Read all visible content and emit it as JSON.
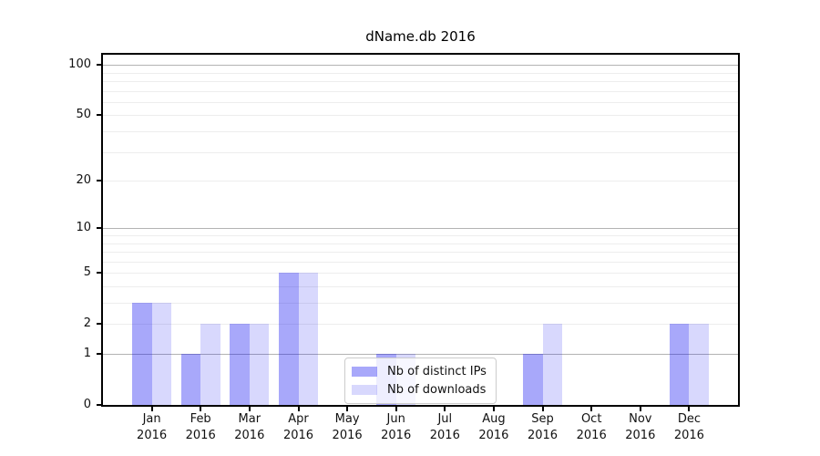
{
  "chart_data": {
    "type": "bar",
    "title": "dName.db 2016",
    "x_year": "2016",
    "categories": [
      "Jan",
      "Feb",
      "Mar",
      "Apr",
      "May",
      "Jun",
      "Jul",
      "Aug",
      "Sep",
      "Oct",
      "Nov",
      "Dec"
    ],
    "series": [
      {
        "name": "Nb of distinct IPs",
        "key": "distinct-ips",
        "color": "#0000f057",
        "values": [
          3,
          1,
          2,
          5,
          0,
          1,
          0,
          0,
          1,
          0,
          0,
          2
        ]
      },
      {
        "name": "Nb of downloads",
        "key": "downloads",
        "color": "#0000f027",
        "values": [
          3,
          2,
          2,
          5,
          0,
          1,
          0,
          0,
          2,
          0,
          0,
          2
        ]
      }
    ],
    "y_ticks": [
      0,
      1,
      2,
      5,
      10,
      20,
      50,
      100
    ],
    "y_scale": "log10(value+1)",
    "ylim": [
      0,
      115
    ],
    "grid": true,
    "legend_position": "lower center",
    "colors": {
      "grid_major": "#b3b3b3",
      "grid_minor": "#ededed",
      "axis": "#000000",
      "text": "#111111",
      "background": "#ffffff"
    }
  }
}
